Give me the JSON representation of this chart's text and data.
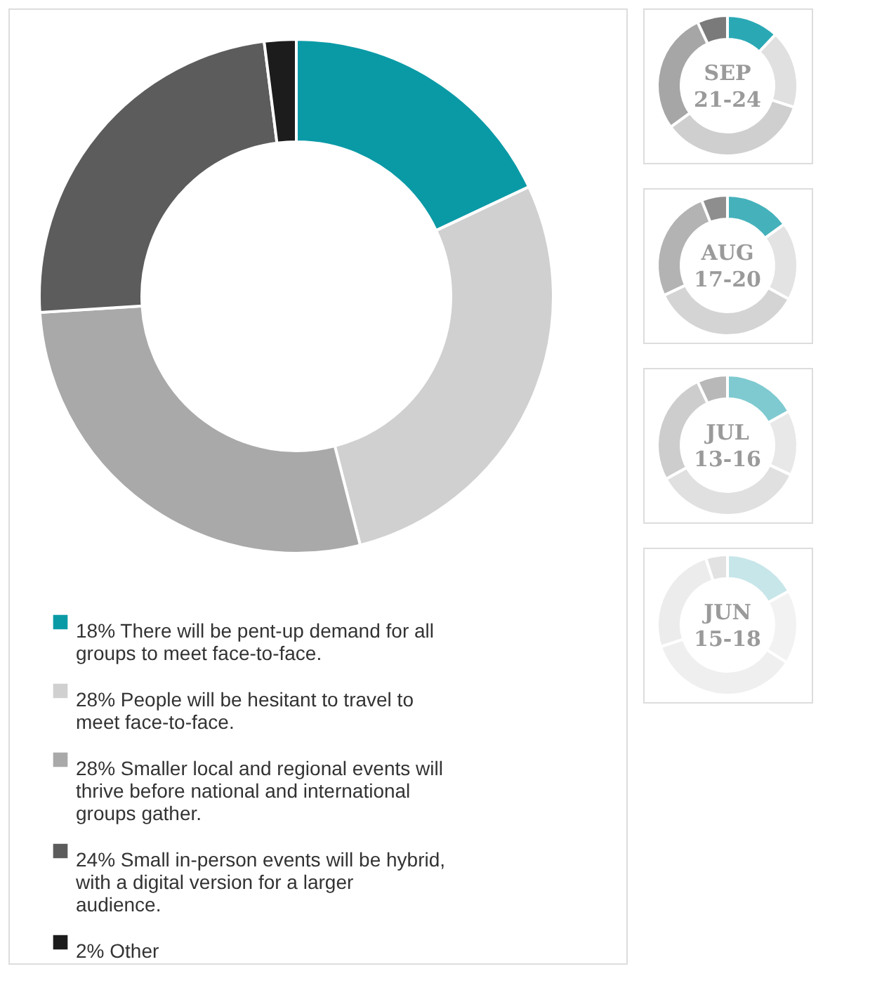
{
  "chart_data": [
    {
      "type": "donut",
      "categories": [
        "There will be pent-up demand for all groups to meet face-to-face.",
        "People will be hesitant to travel to meet face-to-face.",
        "Smaller local and regional events will thrive before national and international groups gather.",
        "Small in-person events will be hybrid, with a digital version for a larger audience.",
        "Other"
      ],
      "values": [
        18,
        28,
        28,
        24,
        2
      ],
      "colors": [
        "#0a9aa6",
        "#d0d0d0",
        "#a9a9a9",
        "#5c5c5c",
        "#1c1c1c"
      ],
      "value_labels": [
        "18%",
        "28%",
        "28%",
        "24%",
        "2%"
      ],
      "legend": "bottom"
    },
    {
      "type": "donut",
      "title": "SEP 21-24",
      "categories": [
        null,
        null,
        null,
        null,
        null
      ],
      "values": [
        12,
        18,
        35,
        28,
        7
      ],
      "colors": [
        "#2aa9b5",
        "#e0e0e0",
        "#cfcfcf",
        "#a6a6a6",
        "#7a7a7a"
      ]
    },
    {
      "type": "donut",
      "title": "AUG 17-20",
      "categories": [
        null,
        null,
        null,
        null,
        null
      ],
      "values": [
        15,
        18,
        35,
        26,
        6
      ],
      "colors": [
        "#45b1bb",
        "#e3e3e3",
        "#d4d4d4",
        "#b3b3b3",
        "#8e8e8e"
      ]
    },
    {
      "type": "donut",
      "title": "JUL 13-16",
      "categories": [
        null,
        null,
        null,
        null,
        null
      ],
      "values": [
        17,
        15,
        35,
        26,
        7
      ],
      "colors": [
        "#7fcad1",
        "#e8e8e8",
        "#e0e0e0",
        "#cdcdcd",
        "#b8b8b8"
      ]
    },
    {
      "type": "donut",
      "title": "JUN 15-18",
      "categories": [
        null,
        null,
        null,
        null,
        null
      ],
      "values": [
        17,
        17,
        36,
        25,
        5
      ],
      "colors": [
        "#c7e6ea",
        "#f2f2f2",
        "#efefef",
        "#ececec",
        "#e2e2e2"
      ]
    }
  ]
}
